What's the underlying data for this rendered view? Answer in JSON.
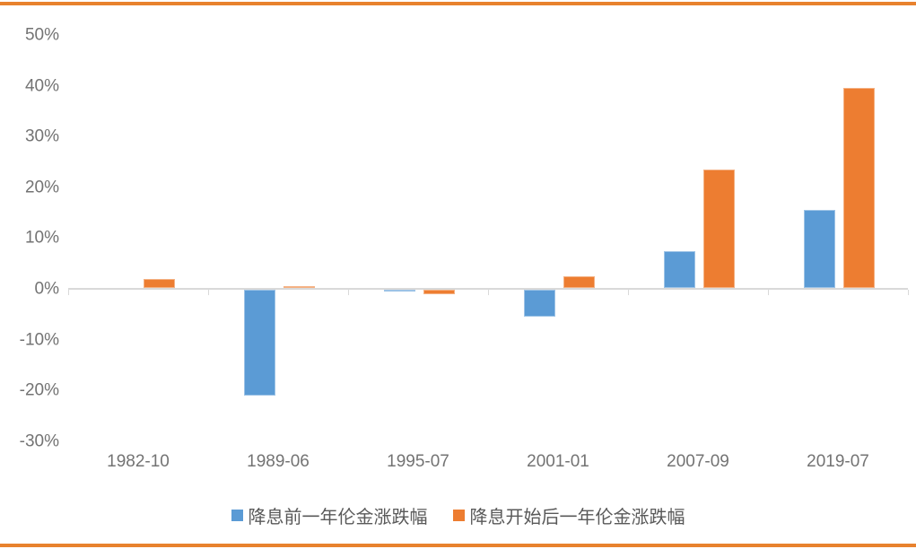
{
  "chart_data": {
    "type": "bar",
    "categories": [
      "1982-10",
      "1989-06",
      "1995-07",
      "2001-01",
      "2007-09",
      "2019-07"
    ],
    "series": [
      {
        "name": "降息前一年伦金涨跌幅",
        "color": "#5B9BD5",
        "border_color": "#9DC3E6",
        "values": [
          0,
          -21,
          -0.5,
          -5.5,
          7.5,
          15.5
        ]
      },
      {
        "name": "降息开始后一年伦金涨跌幅",
        "color": "#ED7D31",
        "border_color": "#F4B183",
        "values": [
          2,
          0.5,
          -1,
          2.5,
          23.5,
          39.5
        ]
      }
    ],
    "title": "",
    "xlabel": "",
    "ylabel": "",
    "ylim": [
      -30,
      50
    ],
    "ytick_step": 10,
    "ytick_format": "percent",
    "grid": false,
    "legend_position": "bottom"
  },
  "legend": {
    "items": [
      {
        "label": "降息前一年伦金涨跌幅",
        "color": "#5B9BD5"
      },
      {
        "label": "降息开始后一年伦金涨跌幅",
        "color": "#ED7D31"
      }
    ]
  },
  "colors": {
    "accent_border": "#E8822E",
    "axis_line": "#D9D9D9",
    "tick_label_text": "#737373",
    "legend_text": "#595959",
    "series_before": "#5B9BD5",
    "series_after": "#ED7D31"
  }
}
